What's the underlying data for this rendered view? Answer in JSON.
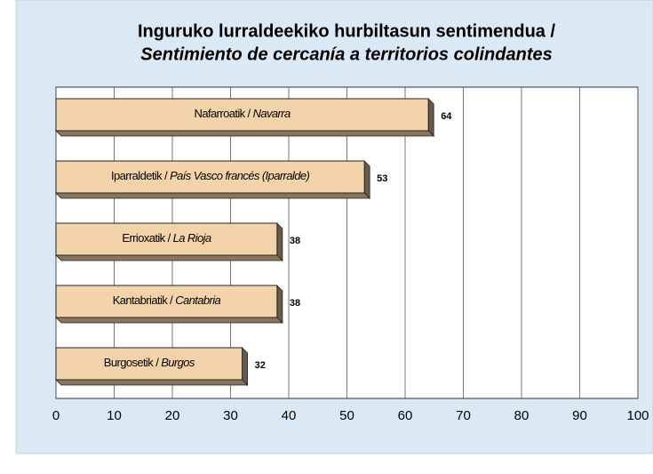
{
  "chart_data": {
    "type": "bar",
    "orientation": "horizontal",
    "title": "Inguruko lurraldeekiko hurbiltasun sentimendua /",
    "subtitle": "Sentimiento de cercanía a territorios colindantes",
    "categories": [
      "Nafarroatik / Navarra",
      "Iparraldetik / País Vasco francés (Iparralde)",
      "Errioxatik / La Rioja",
      "Kantabriatik / Cantabria",
      "Burgosetik / Burgos"
    ],
    "values": [
      64,
      53,
      38,
      38,
      32
    ],
    "color": "#f3d4aa",
    "xlim": [
      0,
      100
    ],
    "xticks": [
      0,
      10,
      20,
      30,
      40,
      50,
      60,
      70,
      80,
      90,
      100
    ],
    "grid": true
  }
}
